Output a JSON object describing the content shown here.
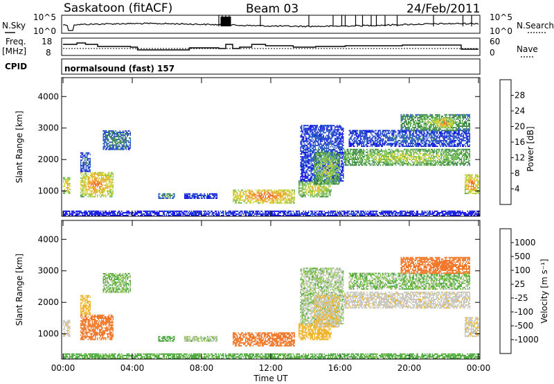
{
  "chart_data": {
    "type": "heatmap",
    "header": {
      "station": "Saskatoon (fitACF)",
      "beam": "Beam 03",
      "date": "24/Feb/2011"
    },
    "noise_panel": {
      "left_label": "N.Sky",
      "right_label": "N.Search",
      "left_ticks": [
        "10^5",
        "10^0"
      ],
      "right_ticks": [
        "10^5",
        "10^0"
      ]
    },
    "freq_panel": {
      "left_label_1": "Freq.",
      "left_label_2": "[MHz]",
      "right_label": "Nave",
      "left_ticks": [
        "18",
        "8"
      ],
      "right_ticks": [
        "60",
        "0"
      ],
      "freq_steps": [
        {
          "t": 0.0,
          "f": 15.5
        },
        {
          "t": 0.8,
          "f": 16.5
        },
        {
          "t": 1.3,
          "f": 15.5
        },
        {
          "t": 2.0,
          "f": 14.0
        },
        {
          "t": 3.9,
          "f": 13.5
        },
        {
          "t": 4.3,
          "f": 11.5
        },
        {
          "t": 7.3,
          "f": 13.0
        },
        {
          "t": 9.0,
          "f": 12.5
        },
        {
          "t": 9.4,
          "f": 15.5
        },
        {
          "t": 9.8,
          "f": 12.5
        },
        {
          "t": 10.2,
          "f": 13.5
        },
        {
          "t": 10.9,
          "f": 15.5
        },
        {
          "t": 11.7,
          "f": 14.5
        },
        {
          "t": 13.3,
          "f": 13.5
        },
        {
          "t": 14.6,
          "f": 14.0
        },
        {
          "t": 16.3,
          "f": 14.5
        },
        {
          "t": 19.6,
          "f": 15.0
        },
        {
          "t": 23.0,
          "f": 12.0
        },
        {
          "t": 24.0,
          "f": 12.0
        }
      ]
    },
    "cpid": {
      "label": "CPID",
      "value": "normalsound (fast) 157"
    },
    "power_panel": {
      "ylabel": "Slant Range [km]",
      "yticks": [
        "1000",
        "2000",
        "3000",
        "4000"
      ],
      "ylim": [
        200,
        4600
      ],
      "colorbar_label": "Power [dB]",
      "colorbar_ticks": [
        "4",
        "8",
        "12",
        "16",
        "20",
        "24",
        "28"
      ],
      "colors": [
        "#1414e6",
        "#2858c8",
        "#3c8a4a",
        "#78be5a",
        "#d2d23c",
        "#f0a030",
        "#f06428",
        "#e61e1e"
      ]
    },
    "velocity_panel": {
      "ylabel": "Slant Range [km]",
      "yticks": [
        "1000",
        "2000",
        "3000",
        "4000"
      ],
      "ylim": [
        200,
        4600
      ],
      "colorbar_label": "Velocity [m s⁻¹]",
      "colorbar_ticks": [
        "1000",
        "500",
        "100",
        "25",
        "-25",
        "-100",
        "-500",
        "-1000"
      ],
      "colors": [
        "#1e3cc8",
        "#3a7a52",
        "#4aa83c",
        "#8cc850",
        "#c8c8c0",
        "#f0b428",
        "#f07828",
        "#f03c1e",
        "#e61414"
      ]
    },
    "x_axis": {
      "xlabel": "Time UT",
      "xticks": [
        "00:00",
        "04:00",
        "08:00",
        "12:00",
        "16:00",
        "20:00",
        "00:00"
      ],
      "xlim": [
        0,
        24
      ]
    },
    "echo_regions": [
      {
        "t0": 0.0,
        "t1": 0.4,
        "r0": 900,
        "r1": 1400,
        "p": 26,
        "v": -10
      },
      {
        "t0": 1.0,
        "t1": 2.9,
        "r0": 800,
        "r1": 1600,
        "p": 27,
        "v": -120
      },
      {
        "t0": 1.0,
        "t1": 1.6,
        "r0": 1600,
        "r1": 2200,
        "p": 10,
        "v": -60
      },
      {
        "t0": 2.3,
        "t1": 3.9,
        "r0": 2300,
        "r1": 2900,
        "p": 12,
        "v": 20
      },
      {
        "t0": 5.5,
        "t1": 6.4,
        "r0": 750,
        "r1": 900,
        "p": 14,
        "v": 50
      },
      {
        "t0": 7.0,
        "t1": 8.9,
        "r0": 750,
        "r1": 900,
        "p": 8,
        "v": 10
      },
      {
        "t0": 9.8,
        "t1": 13.4,
        "r0": 600,
        "r1": 1050,
        "p": 28,
        "v": -150
      },
      {
        "t0": 13.6,
        "t1": 15.5,
        "r0": 800,
        "r1": 1300,
        "p": 22,
        "v": -80
      },
      {
        "t0": 13.7,
        "t1": 16.2,
        "r0": 1300,
        "r1": 3100,
        "p": 9,
        "v": 10
      },
      {
        "t0": 14.5,
        "t1": 16.0,
        "r0": 1200,
        "r1": 2200,
        "p": 20,
        "v": -20
      },
      {
        "t0": 16.2,
        "t1": 23.5,
        "r0": 1800,
        "r1": 2300,
        "p": 20,
        "v": -10
      },
      {
        "t0": 16.5,
        "t1": 23.5,
        "r0": 2400,
        "r1": 2900,
        "p": 9,
        "v": 20
      },
      {
        "t0": 19.5,
        "t1": 23.5,
        "r0": 2900,
        "r1": 3400,
        "p": 17,
        "v": -200
      },
      {
        "t0": 21.5,
        "t1": 22.5,
        "r0": 3000,
        "r1": 3300,
        "p": 27,
        "v": -400
      },
      {
        "t0": 23.2,
        "t1": 24.0,
        "r0": 900,
        "r1": 1500,
        "p": 27,
        "v": -15
      },
      {
        "t0": 0.0,
        "t1": 24.0,
        "r0": 200,
        "r1": 350,
        "p": 6,
        "v": 40
      }
    ]
  }
}
